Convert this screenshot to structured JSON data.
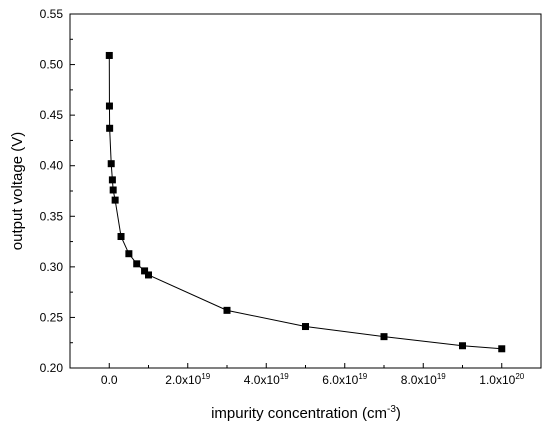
{
  "chart_data": {
    "type": "line",
    "title": "",
    "xlabel": "impurity concentration (cm",
    "xlabel_exponent": "-3",
    "xlabel_suffix": ")",
    "ylabel": "output voltage (V)",
    "xlim": [
      -1e+19,
      1.1e+20
    ],
    "ylim": [
      0.2,
      0.55
    ],
    "marker": "square",
    "line_color": "#000000",
    "grid": false,
    "x_ticks": [
      {
        "value": 0,
        "mantissa": "0.0",
        "exponent": ""
      },
      {
        "value": 2e+19,
        "mantissa": "2.0x10",
        "exponent": "19"
      },
      {
        "value": 4e+19,
        "mantissa": "4.0x10",
        "exponent": "19"
      },
      {
        "value": 6e+19,
        "mantissa": "6.0x10",
        "exponent": "19"
      },
      {
        "value": 8e+19,
        "mantissa": "8.0x10",
        "exponent": "19"
      },
      {
        "value": 1e+20,
        "mantissa": "1.0x10",
        "exponent": "20"
      }
    ],
    "y_ticks": [
      "0.20",
      "0.25",
      "0.30",
      "0.35",
      "0.40",
      "0.45",
      "0.50",
      "0.55"
    ],
    "series": [
      {
        "x": [
          1e+16,
          5e+16,
          1e+17,
          5e+17,
          8e+17,
          1e+18,
          1.5e+18,
          3e+18,
          5e+18,
          7e+18,
          9e+18,
          1e+19,
          3e+19,
          5e+19,
          7e+19,
          9e+19,
          1e+20
        ],
        "y": [
          0.509,
          0.459,
          0.437,
          0.402,
          0.386,
          0.376,
          0.366,
          0.33,
          0.313,
          0.303,
          0.296,
          0.292,
          0.257,
          0.241,
          0.231,
          0.222,
          0.219
        ]
      }
    ]
  }
}
